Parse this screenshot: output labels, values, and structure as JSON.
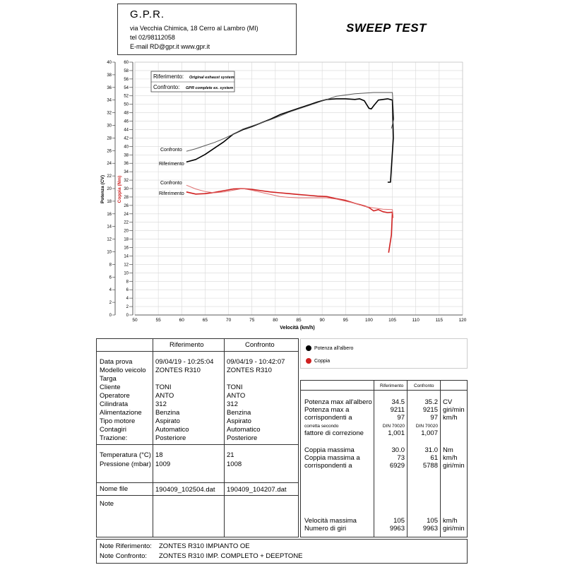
{
  "header": {
    "company": "G.P.R.",
    "address": "via Vecchia Chimica, 18 Cerro al Lambro (MI)",
    "phone": "tel 02/98112058",
    "contact": "E-mail RD@gpr.it  www.gpr.it",
    "report_title": "SWEEP TEST"
  },
  "chart_data": {
    "type": "line",
    "xlabel": "Velocità (km/h)",
    "ylabel_power": "Potenza (CV)",
    "ylabel_torque": "Coppia (Nm)",
    "xlim": [
      50,
      120
    ],
    "x_ticks": [
      50,
      55,
      60,
      65,
      70,
      75,
      80,
      85,
      90,
      95,
      100,
      105,
      110,
      115,
      120
    ],
    "power_axis": {
      "lim": [
        0,
        40
      ],
      "ticks": [
        0,
        2,
        4,
        6,
        8,
        10,
        12,
        14,
        16,
        18,
        20,
        22,
        24,
        26,
        28,
        30,
        32,
        34,
        36,
        38,
        40
      ]
    },
    "torque_axis": {
      "lim": [
        0,
        60
      ],
      "ticks": [
        0,
        2,
        4,
        6,
        8,
        10,
        12,
        14,
        16,
        18,
        20,
        22,
        24,
        26,
        28,
        30,
        32,
        34,
        36,
        38,
        40,
        42,
        44,
        46,
        48,
        50,
        52,
        54,
        56,
        58,
        60
      ]
    },
    "legend_box": {
      "riferimento_label": "Riferimento:",
      "riferimento_desc": "Original exhaust system",
      "confronto_label": "Confronto:",
      "confronto_desc": "GPR complete ex. system"
    },
    "curve_labels": {
      "power_confronto": "Confronto",
      "power_riferimento": "Riferimento",
      "torque_confronto": "Confronto",
      "torque_riferimento": "Riferimento"
    },
    "series": [
      {
        "name": "Potenza Riferimento",
        "axis": "power",
        "color": "#000000",
        "x": [
          61,
          63,
          65,
          67,
          69,
          71,
          73,
          75,
          77,
          79,
          81,
          83,
          85,
          87,
          89,
          91,
          93,
          95,
          97,
          98,
          99,
          100,
          100.5,
          101,
          102,
          103,
          104,
          105,
          105.2,
          104.6,
          104
        ],
        "y": [
          24.2,
          24.6,
          25.4,
          26.4,
          27.4,
          28.6,
          29.3,
          29.8,
          30.4,
          31.0,
          31.7,
          32.2,
          32.7,
          33.2,
          33.7,
          34.1,
          34.2,
          34.2,
          34.1,
          34.2,
          33.9,
          32.7,
          32.6,
          33.1,
          34.0,
          34.1,
          34.2,
          34.0,
          28.0,
          21.0,
          21.0
        ]
      },
      {
        "name": "Potenza Confronto",
        "axis": "power",
        "color": "#555555",
        "x": [
          61,
          63,
          65,
          67,
          69,
          71,
          73,
          75,
          77,
          79,
          81,
          83,
          85,
          87,
          89,
          91,
          93,
          95,
          97,
          99,
          101,
          103,
          105,
          105.3,
          104.8
        ],
        "y": [
          25.9,
          26.3,
          26.8,
          27.3,
          27.9,
          28.6,
          29.4,
          29.9,
          30.4,
          30.9,
          31.5,
          32.1,
          32.6,
          33.1,
          33.6,
          34.1,
          34.6,
          34.8,
          35.0,
          35.1,
          35.2,
          35.2,
          35.2,
          31.0,
          29.5
        ]
      },
      {
        "name": "Coppia Riferimento",
        "axis": "torque",
        "color": "#d02020",
        "x": [
          61,
          63,
          65,
          67,
          69,
          71,
          73,
          75,
          77,
          79,
          81,
          83,
          85,
          87,
          89,
          91,
          93,
          95,
          97,
          99,
          100,
          101,
          102,
          103,
          104,
          105,
          104.8,
          104.2
        ],
        "y": [
          29.2,
          28.7,
          28.8,
          29.1,
          29.5,
          29.9,
          30.0,
          29.8,
          29.5,
          29.2,
          29.0,
          28.8,
          28.6,
          28.4,
          28.2,
          28.1,
          27.6,
          27.2,
          26.5,
          25.9,
          25.5,
          24.7,
          25.0,
          24.5,
          24.3,
          24.4,
          19.0,
          14.8
        ]
      },
      {
        "name": "Coppia Confronto",
        "axis": "torque",
        "color": "#e07070",
        "x": [
          61,
          63,
          65,
          67,
          69,
          71,
          73,
          75,
          77,
          79,
          81,
          83,
          85,
          87,
          89,
          91,
          93,
          95,
          97,
          99,
          101,
          103,
          105,
          105.2
        ],
        "y": [
          30.8,
          29.9,
          29.3,
          29.0,
          29.2,
          29.6,
          30.0,
          29.6,
          29.1,
          28.6,
          28.1,
          27.9,
          27.8,
          27.8,
          27.8,
          27.8,
          27.5,
          27.0,
          26.5,
          25.8,
          25.4,
          25.1,
          25.0,
          23.0
        ]
      }
    ]
  },
  "legend_right": {
    "power": "Potenza all'albero",
    "torque": "Coppia",
    "power_color": "#000000",
    "torque_color": "#d02020"
  },
  "left_table": {
    "col_headers": [
      "Riferimento",
      "Confronto"
    ],
    "labels": [
      "Data prova",
      "Modello veicolo",
      "Targa",
      "Cliente",
      "Operatore",
      "Cilindrata",
      "Alimentazione",
      "Tipo motore",
      "Contagiri",
      "Trazione:"
    ],
    "riferimento": [
      "09/04/19 - 10:25:04",
      "ZONTES R310",
      "",
      "TONI",
      "ANTO",
      "312",
      "Benzina",
      "Aspirato",
      "Automatico",
      "Posteriore"
    ],
    "confronto": [
      "09/04/19 - 10:42:07",
      "ZONTES R310",
      "",
      "TONI",
      "ANTO",
      "312",
      "Benzina",
      "Aspirato",
      "Automatico",
      "Posteriore"
    ],
    "temp_label": "Temperatura (°C)",
    "press_label": "Pressione (mbar)",
    "temp_rif": "18",
    "press_rif": "1009",
    "temp_conf": "21",
    "press_conf": "1008",
    "file_label": "Nome file",
    "file_rif": "190409_102504.dat",
    "file_conf": "190409_104207.dat",
    "note_label": "Note"
  },
  "right_table": {
    "col_headers": [
      "Riferimento",
      "Confronto"
    ],
    "group1": [
      {
        "label": "Potenza max all'albero",
        "rif": "34.5",
        "conf": "35.2",
        "unit": "CV"
      },
      {
        "label": "Potenza max a",
        "rif": "9211",
        "conf": "9215",
        "unit": "giri/min"
      },
      {
        "label": "corrispondenti a",
        "rif": "97",
        "conf": "97",
        "unit": "km/h"
      }
    ],
    "correction_label": "corretta secondo",
    "correction_rif": "DIN 70020",
    "correction_conf": "DIN 70020",
    "factor_label": "fattore di correzione",
    "factor_rif": "1,001",
    "factor_conf": "1,007",
    "group2": [
      {
        "label": "Coppia massima",
        "rif": "30.0",
        "conf": "31.0",
        "unit": "Nm"
      },
      {
        "label": "Coppia massima a",
        "rif": "73",
        "conf": "61",
        "unit": "km/h"
      },
      {
        "label": "corrispondenti a",
        "rif": "6929",
        "conf": "5788",
        "unit": "giri/min"
      }
    ],
    "group3": [
      {
        "label": "Velocità massima",
        "rif": "105",
        "conf": "105",
        "unit": "km/h"
      },
      {
        "label": "Numero di giri",
        "rif": "9963",
        "conf": "9963",
        "unit": "giri/min"
      }
    ]
  },
  "notes": {
    "rif_label": "Note Riferimento:",
    "rif_value": "ZONTES R310 IMPIANTO OE",
    "conf_label": "Note Confronto:",
    "conf_value": "ZONTES R310 IMP. COMPLETO + DEEPTONE"
  }
}
